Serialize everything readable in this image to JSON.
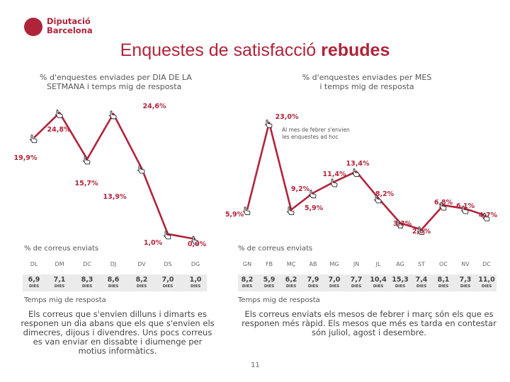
{
  "logo": {
    "line1": "Diputació",
    "line2": "Barcelona"
  },
  "title": {
    "regular": "Enquestes de satisfacció ",
    "bold": "rebudes"
  },
  "left_panel": {
    "subtitle_line1": "% d'enquestes enviades per DIA DE LA",
    "subtitle_line2": "SETMANA i temps mig de resposta",
    "mail_label": "% de correus enviats",
    "time_label": "Temps mig de resposta",
    "unit": "DIES",
    "description_lines": [
      "Els correus que s'envien dilluns i dimarts es",
      "responen un dia abans que els que s'envien els",
      "dimecres, dijous i divendres. Uns pocs correus",
      "es van enviar en dissabte i diumenge per",
      "motius informàtics."
    ]
  },
  "right_panel": {
    "subtitle_line1": "% d'enquestes enviades per MES",
    "subtitle_line2": "i temps mig de resposta",
    "note_line1": "Al mes de febrer s'envien",
    "note_line2": "les enquestes ad hoc",
    "mail_label": "% de correus enviats",
    "time_label": "Temps mig de resposta",
    "unit": "DIES",
    "description_lines": [
      "Els correus enviats els mesos de febrer i març són els que es",
      "responen més ràpid. Els mesos que més es tarda en contestar",
      "són juliol, agost i desembre."
    ]
  },
  "page_number": "11",
  "chart_data": [
    {
      "type": "line",
      "title": "% d'enquestes enviades per DIA DE LA SETMANA i temps mig de resposta",
      "categories": [
        "DL",
        "DM",
        "DC",
        "DJ",
        "DV",
        "DS",
        "DG"
      ],
      "series": [
        {
          "name": "% de correus enviats",
          "values": [
            19.9,
            24.8,
            15.7,
            24.6,
            13.9,
            1.0,
            0.0
          ],
          "labels": [
            "19,9%",
            "24,8%",
            "15,7%",
            "24,6%",
            "13,9%",
            "1,0%",
            "0,0%"
          ]
        },
        {
          "name": "Temps mig de resposta (dies)",
          "values": [
            6.9,
            7.1,
            8.3,
            8.6,
            8.2,
            7.0,
            1.0
          ],
          "labels": [
            "6,9",
            "7,1",
            "8,3",
            "8,6",
            "8,2",
            "7,0",
            "1,0"
          ]
        }
      ],
      "ylim": [
        0,
        26
      ],
      "color": "#b0243a"
    },
    {
      "type": "line",
      "title": "% d'enquestes enviades per MES i temps mig de resposta",
      "categories": [
        "GN",
        "FB",
        "MÇ",
        "AB",
        "MG",
        "JN",
        "JL",
        "AG",
        "ST",
        "OC",
        "NV",
        "DC"
      ],
      "series": [
        {
          "name": "% de correus enviats",
          "values": [
            5.9,
            23.0,
            5.9,
            9.2,
            11.4,
            13.4,
            8.2,
            3.3,
            2.0,
            6.8,
            6.1,
            4.7
          ],
          "labels": [
            "5,9%",
            "23,0%",
            "5,9%",
            "9,2%",
            "11,4%",
            "13,4%",
            "8,2%",
            "3,3%",
            "2,0%",
            "6,8%",
            "6,1%",
            "4,7%"
          ]
        },
        {
          "name": "Temps mig de resposta (dies)",
          "values": [
            8.2,
            5.9,
            6.2,
            7.9,
            7.0,
            7.7,
            10.4,
            15.3,
            7.4,
            8.1,
            7.3,
            11.0
          ],
          "labels": [
            "8,2",
            "5,9",
            "6,2",
            "7,9",
            "7,0",
            "7,7",
            "10,4",
            "15,3",
            "7,4",
            "8,1",
            "7,3",
            "11,0"
          ]
        }
      ],
      "ylim": [
        0,
        26
      ],
      "color": "#b0243a"
    }
  ]
}
